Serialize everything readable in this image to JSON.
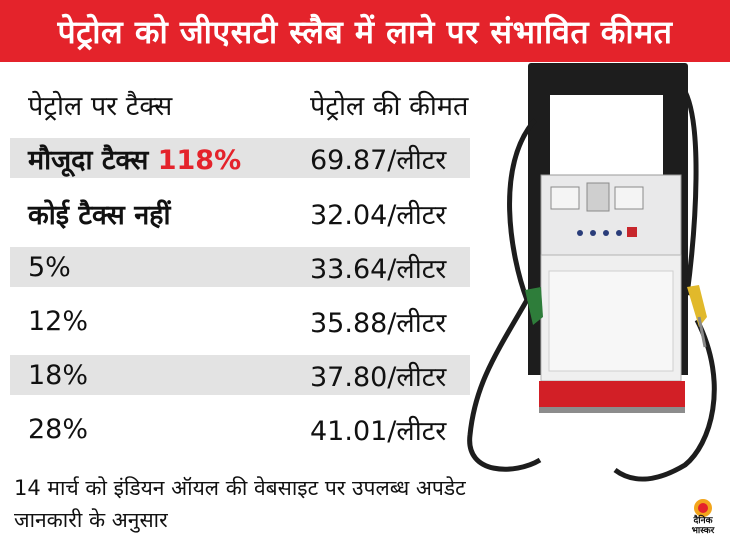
{
  "title": "पेट्रोल को जीएसटी स्लैब में लाने पर संभावित कीमत",
  "columns": {
    "tax": "पेट्रोल पर टैक्स",
    "price": "पेट्रोल की कीमत"
  },
  "rows": [
    {
      "tax_label": "मौजूदा टैक्स",
      "tax_highlight": "118%",
      "price": "69.87/लीटर"
    },
    {
      "tax_label": "कोई टैक्स नहीं",
      "tax_highlight": "",
      "price": "32.04/लीटर"
    },
    {
      "tax_label": "5%",
      "tax_highlight": "",
      "price": "33.64/लीटर"
    },
    {
      "tax_label": "12%",
      "tax_highlight": "",
      "price": "35.88/लीटर"
    },
    {
      "tax_label": "18%",
      "tax_highlight": "",
      "price": "37.80/लीटर"
    },
    {
      "tax_label": "28%",
      "tax_highlight": "",
      "price": "41.01/लीटर"
    }
  ],
  "footer": {
    "line1": "14 मार्च को इंडियन ऑयल की वेबसाइट पर उपलब्ध अपडेट",
    "line2": "जानकारी के अनुसार"
  },
  "logo": {
    "text_line1": "दैनिक",
    "text_line2": "भास्कर"
  },
  "colors": {
    "accent": "#e4232b",
    "row_shade": "#e3e3e3",
    "pump_body": "#1d1d1d",
    "pump_base": "#d21f26"
  },
  "icons": [
    "fuel-pump-illustration",
    "dainik-bhaskar-logo"
  ]
}
